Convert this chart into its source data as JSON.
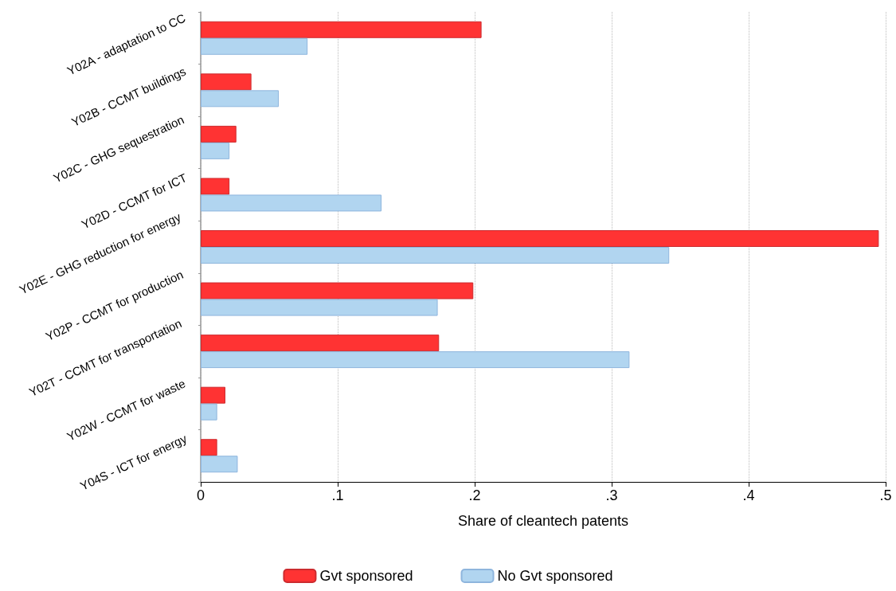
{
  "chart_data": {
    "type": "bar",
    "orientation": "horizontal",
    "xlabel": "Share of cleantech patents",
    "categories": [
      "Y02A - adaptation to CC",
      "Y02B - CCMT buildings",
      "Y02C - GHG sequestration",
      "Y02D - CCMT for ICT",
      "Y02E - GHG reduction for energy",
      "Y02P - CCMT for production",
      "Y02T - CCMT for transportation",
      "Y02W - CCMT for waste",
      "Y04S - ICT for energy"
    ],
    "series": [
      {
        "name": "Gvt sponsored",
        "color": "#ff3333",
        "values": [
          0.205,
          0.037,
          0.026,
          0.021,
          0.495,
          0.199,
          0.174,
          0.018,
          0.012
        ]
      },
      {
        "name": "No Gvt sponsored",
        "color": "#b1d5f0",
        "values": [
          0.078,
          0.057,
          0.021,
          0.132,
          0.342,
          0.173,
          0.313,
          0.012,
          0.027
        ]
      }
    ],
    "xlim": [
      0,
      0.5
    ],
    "xticks": [
      0,
      {
        "value": 0.1,
        "label": ".1"
      },
      {
        "value": 0.2,
        "label": ".2"
      },
      {
        "value": 0.3,
        "label": ".3"
      },
      {
        "value": 0.4,
        "label": ".4"
      },
      {
        "value": 0.5,
        "label": ".5"
      }
    ],
    "grid": "x",
    "legend": "bottom"
  }
}
